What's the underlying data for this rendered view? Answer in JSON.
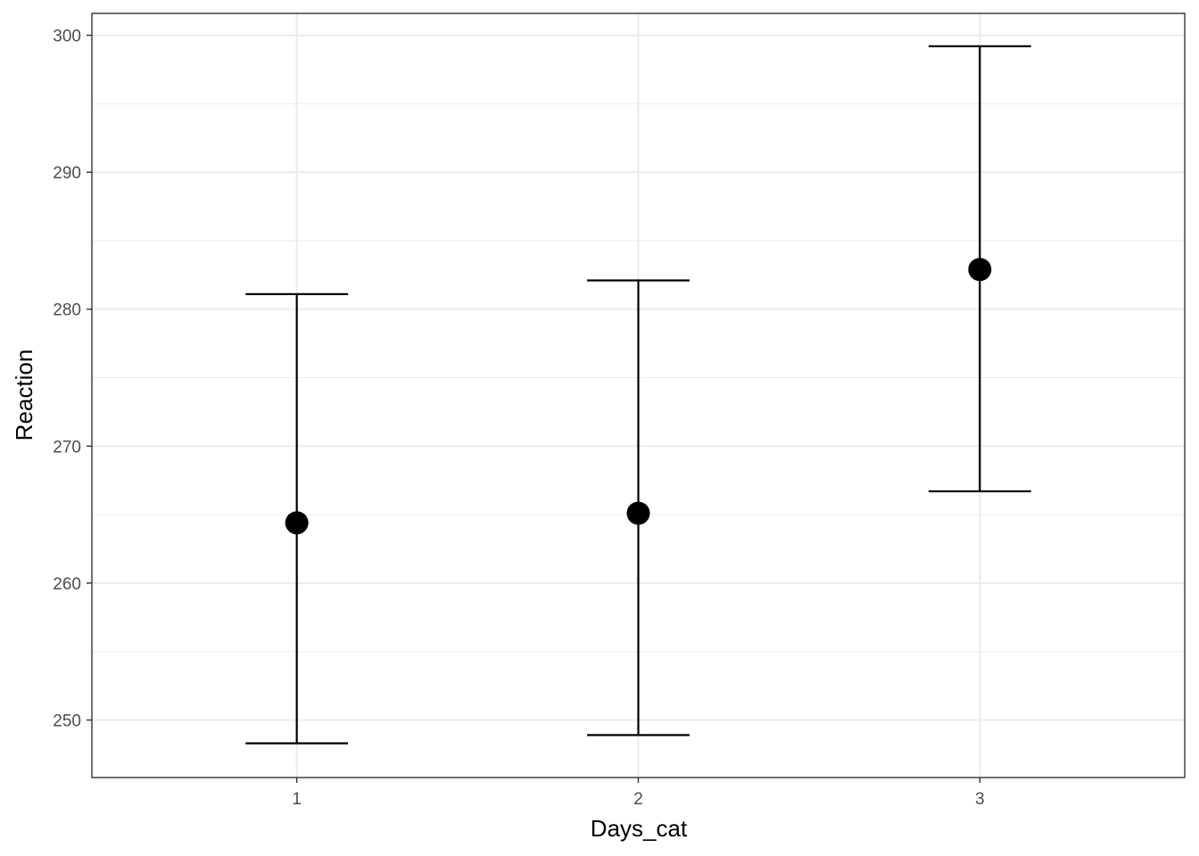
{
  "chart_data": {
    "type": "scatter",
    "title": "",
    "xlabel": "Days_cat",
    "ylabel": "Reaction",
    "categories": [
      "1",
      "2",
      "3"
    ],
    "x_tick_labels": [
      "1",
      "2",
      "3"
    ],
    "y_ticks": [
      250,
      260,
      270,
      280,
      290,
      300
    ],
    "y_tick_labels": [
      "250",
      "260",
      "270",
      "280",
      "290",
      "300"
    ],
    "ylim": [
      245.8,
      301.6
    ],
    "grid": true,
    "theme": "black-and-white",
    "series": [
      {
        "values": [
          264.4,
          265.1,
          282.9
        ],
        "lower": [
          248.3,
          248.9,
          266.7
        ],
        "upper": [
          281.1,
          282.1,
          299.2
        ]
      }
    ],
    "colors": {
      "marks": "#000000",
      "grid": "#ebebeb",
      "border": "#333333",
      "tick_text": "#4d4d4d"
    }
  }
}
